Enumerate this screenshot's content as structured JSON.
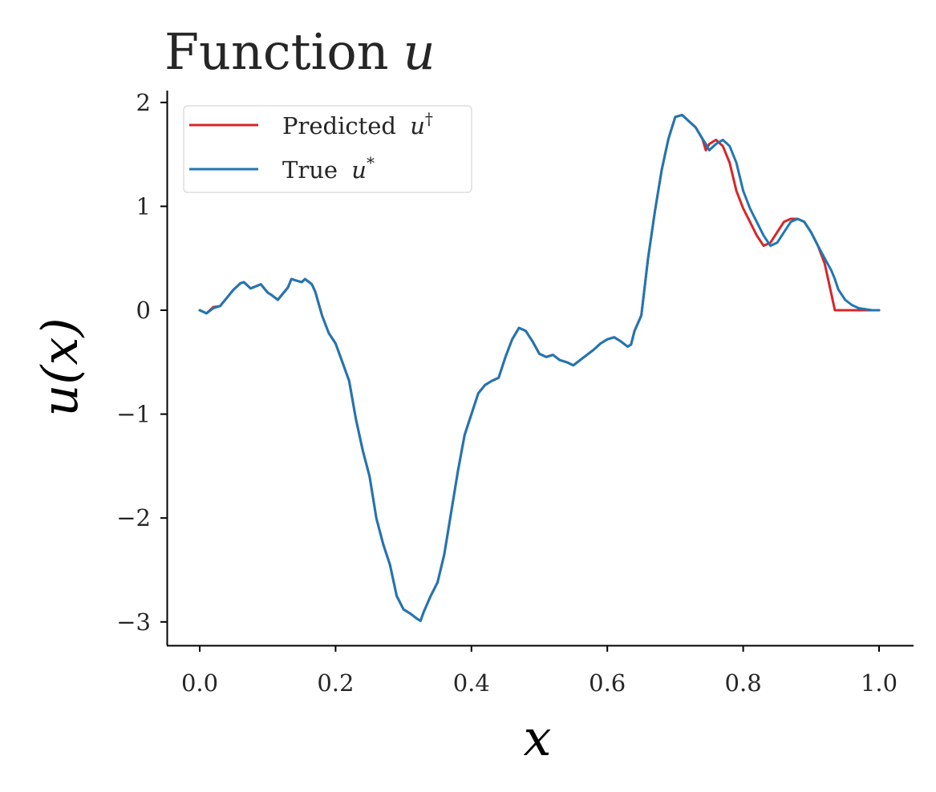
{
  "chart_data": {
    "type": "line",
    "title": "Function u",
    "title_parts": {
      "text": "Function",
      "var": "u"
    },
    "xlabel": "x",
    "ylabel": "u(x)",
    "xlim": [
      -0.05,
      1.05
    ],
    "ylim": [
      -3.22,
      2.12
    ],
    "xticks": [
      0.0,
      0.2,
      0.4,
      0.6,
      0.8,
      1.0
    ],
    "xtick_labels": [
      "0.0",
      "0.2",
      "0.4",
      "0.6",
      "0.8",
      "1.0"
    ],
    "yticks": [
      -3,
      -2,
      -1,
      0,
      1,
      2
    ],
    "ytick_labels": [
      "−3",
      "−2",
      "−1",
      "0",
      "1",
      "2"
    ],
    "grid": false,
    "legend_position": "top-left",
    "legend": [
      {
        "text": "Predicted ",
        "var": "u",
        "sup": "†",
        "color": "#d62728"
      },
      {
        "text": "True ",
        "var": "u",
        "sup": "*",
        "color": "#1f77b4"
      }
    ],
    "series": [
      {
        "name": "Predicted u†",
        "color": "#d62728",
        "x": [
          0.0,
          0.01,
          0.02,
          0.03,
          0.04,
          0.05,
          0.06,
          0.065,
          0.075,
          0.09,
          0.1,
          0.105,
          0.115,
          0.13,
          0.135,
          0.14,
          0.15,
          0.155,
          0.165,
          0.17,
          0.18,
          0.19,
          0.2,
          0.21,
          0.22,
          0.23,
          0.24,
          0.25,
          0.26,
          0.27,
          0.28,
          0.29,
          0.3,
          0.31,
          0.32,
          0.325,
          0.33,
          0.34,
          0.35,
          0.36,
          0.37,
          0.38,
          0.39,
          0.4,
          0.41,
          0.42,
          0.43,
          0.44,
          0.45,
          0.46,
          0.47,
          0.48,
          0.49,
          0.5,
          0.51,
          0.52,
          0.53,
          0.54,
          0.55,
          0.56,
          0.57,
          0.58,
          0.59,
          0.6,
          0.61,
          0.62,
          0.63,
          0.635,
          0.64,
          0.65,
          0.66,
          0.67,
          0.68,
          0.69,
          0.7,
          0.71,
          0.72,
          0.73,
          0.74,
          0.745,
          0.75,
          0.76,
          0.77,
          0.78,
          0.79,
          0.8,
          0.81,
          0.82,
          0.83,
          0.84,
          0.85,
          0.86,
          0.87,
          0.88,
          0.89,
          0.9,
          0.91,
          0.92,
          0.93,
          0.935,
          0.94,
          0.95,
          0.96,
          0.97,
          0.98,
          0.99,
          1.0
        ],
        "y": [
          0.0,
          -0.03,
          0.03,
          0.04,
          0.12,
          0.2,
          0.26,
          0.27,
          0.21,
          0.25,
          0.17,
          0.15,
          0.1,
          0.22,
          0.3,
          0.29,
          0.27,
          0.3,
          0.25,
          0.18,
          -0.05,
          -0.22,
          -0.32,
          -0.5,
          -0.68,
          -1.05,
          -1.35,
          -1.6,
          -2.0,
          -2.25,
          -2.45,
          -2.75,
          -2.88,
          -2.92,
          -2.97,
          -2.99,
          -2.9,
          -2.75,
          -2.62,
          -2.35,
          -1.95,
          -1.55,
          -1.2,
          -1.0,
          -0.8,
          -0.72,
          -0.68,
          -0.65,
          -0.45,
          -0.28,
          -0.17,
          -0.2,
          -0.3,
          -0.42,
          -0.45,
          -0.43,
          -0.48,
          -0.5,
          -0.53,
          -0.48,
          -0.43,
          -0.38,
          -0.32,
          -0.28,
          -0.26,
          -0.3,
          -0.35,
          -0.33,
          -0.2,
          -0.05,
          0.5,
          0.95,
          1.35,
          1.65,
          1.86,
          1.88,
          1.82,
          1.76,
          1.65,
          1.54,
          1.6,
          1.64,
          1.58,
          1.42,
          1.15,
          0.98,
          0.85,
          0.72,
          0.62,
          0.65,
          0.75,
          0.85,
          0.88,
          0.88,
          0.85,
          0.75,
          0.62,
          0.45,
          0.15,
          0.0,
          0.0,
          0.0,
          0.0,
          0.0,
          0.0,
          0.0,
          0.0
        ]
      },
      {
        "name": "True u*",
        "color": "#1f77b4",
        "x": [
          0.0,
          0.01,
          0.02,
          0.03,
          0.04,
          0.05,
          0.06,
          0.065,
          0.075,
          0.09,
          0.1,
          0.105,
          0.115,
          0.13,
          0.135,
          0.14,
          0.15,
          0.155,
          0.165,
          0.17,
          0.18,
          0.19,
          0.2,
          0.21,
          0.22,
          0.23,
          0.24,
          0.25,
          0.26,
          0.27,
          0.28,
          0.29,
          0.3,
          0.31,
          0.32,
          0.325,
          0.33,
          0.34,
          0.35,
          0.36,
          0.37,
          0.38,
          0.39,
          0.4,
          0.41,
          0.42,
          0.43,
          0.44,
          0.45,
          0.46,
          0.47,
          0.48,
          0.49,
          0.5,
          0.51,
          0.52,
          0.53,
          0.54,
          0.55,
          0.56,
          0.57,
          0.58,
          0.59,
          0.6,
          0.61,
          0.62,
          0.63,
          0.635,
          0.64,
          0.65,
          0.66,
          0.67,
          0.68,
          0.69,
          0.7,
          0.71,
          0.72,
          0.73,
          0.74,
          0.745,
          0.75,
          0.76,
          0.77,
          0.78,
          0.79,
          0.8,
          0.81,
          0.82,
          0.83,
          0.84,
          0.85,
          0.86,
          0.87,
          0.88,
          0.89,
          0.9,
          0.91,
          0.92,
          0.93,
          0.935,
          0.94,
          0.95,
          0.96,
          0.97,
          0.98,
          0.99,
          1.0
        ],
        "y": [
          0.0,
          -0.03,
          0.02,
          0.04,
          0.12,
          0.2,
          0.26,
          0.27,
          0.21,
          0.25,
          0.17,
          0.15,
          0.1,
          0.22,
          0.3,
          0.29,
          0.27,
          0.3,
          0.25,
          0.18,
          -0.05,
          -0.22,
          -0.32,
          -0.5,
          -0.68,
          -1.05,
          -1.35,
          -1.6,
          -2.0,
          -2.25,
          -2.45,
          -2.75,
          -2.88,
          -2.92,
          -2.97,
          -2.99,
          -2.9,
          -2.75,
          -2.62,
          -2.35,
          -1.95,
          -1.55,
          -1.2,
          -1.0,
          -0.8,
          -0.72,
          -0.68,
          -0.65,
          -0.45,
          -0.28,
          -0.17,
          -0.2,
          -0.3,
          -0.42,
          -0.45,
          -0.43,
          -0.48,
          -0.5,
          -0.53,
          -0.48,
          -0.43,
          -0.38,
          -0.32,
          -0.28,
          -0.26,
          -0.3,
          -0.35,
          -0.33,
          -0.2,
          -0.05,
          0.5,
          0.95,
          1.35,
          1.65,
          1.86,
          1.88,
          1.82,
          1.76,
          1.65,
          1.6,
          1.54,
          1.6,
          1.64,
          1.58,
          1.42,
          1.15,
          0.98,
          0.85,
          0.72,
          0.62,
          0.65,
          0.75,
          0.85,
          0.88,
          0.85,
          0.75,
          0.62,
          0.5,
          0.38,
          0.3,
          0.2,
          0.1,
          0.05,
          0.02,
          0.01,
          0.0,
          0.0
        ]
      }
    ]
  }
}
